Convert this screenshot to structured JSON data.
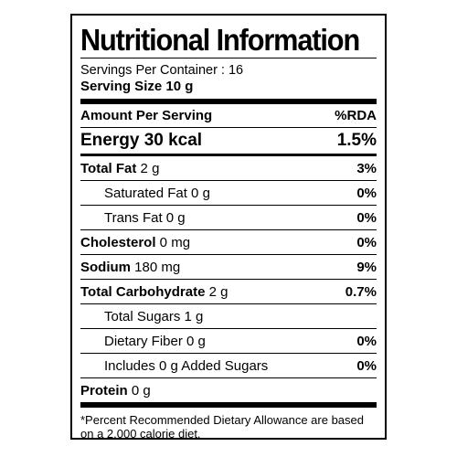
{
  "title": "Nutritional Information",
  "servings_per_container": "Servings Per Container : 16",
  "serving_size": "Serving Size 10 g",
  "header": {
    "amount_label": "Amount Per Serving",
    "rda_label": "%RDA"
  },
  "energy": {
    "label": "Energy 30 kcal",
    "percent": "1.5%"
  },
  "nutrients": [
    {
      "name": "Total Fat",
      "amount": " 2 g",
      "percent": "3%"
    },
    {
      "name": "Saturated Fat 0 g",
      "amount": "",
      "percent": "0%"
    },
    {
      "name": "Trans Fat 0 g",
      "amount": "",
      "percent": "0%"
    },
    {
      "name": "Cholesterol",
      "amount": " 0 mg",
      "percent": "0%"
    },
    {
      "name": "Sodium",
      "amount": " 180 mg",
      "percent": "9%"
    },
    {
      "name": "Total Carbohydrate",
      "amount": " 2 g",
      "percent": "0.7%"
    },
    {
      "name": "Total Sugars 1 g",
      "amount": "",
      "percent": ""
    },
    {
      "name": "Dietary Fiber 0 g",
      "amount": "",
      "percent": "0%"
    },
    {
      "name": "Includes 0 g Added Sugars",
      "amount": "",
      "percent": "0%"
    },
    {
      "name": "Protein",
      "amount": " 0 g",
      "percent": ""
    }
  ],
  "footnote": {
    "line1": "*Percent Recommended Dietary Allowance are based",
    "line2": "on a 2,000 calorie diet."
  }
}
